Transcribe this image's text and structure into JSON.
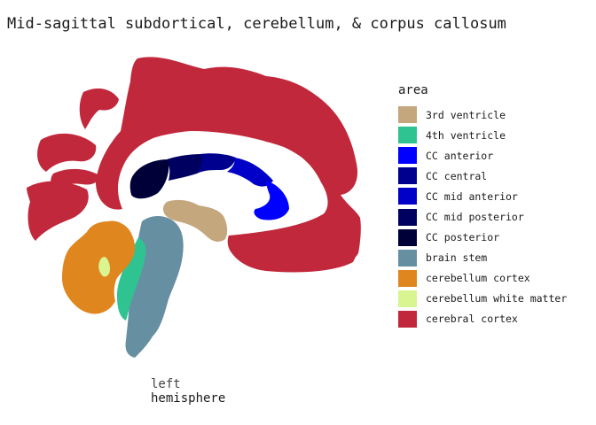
{
  "title": "Mid-sagittal subdortical, cerebellum, & corpus callosum",
  "legend": {
    "title": "area",
    "items": [
      {
        "key": "3rd-ventricle",
        "label": "3rd ventricle",
        "color": "#C4A77D"
      },
      {
        "key": "4th-ventricle",
        "label": "4th ventricle",
        "color": "#2EC391"
      },
      {
        "key": "cc-anterior",
        "label": "CC anterior",
        "color": "#0000FF"
      },
      {
        "key": "cc-central",
        "label": "CC central",
        "color": "#00008F"
      },
      {
        "key": "cc-mid-anterior",
        "label": "CC mid anterior",
        "color": "#0000C8"
      },
      {
        "key": "cc-mid-posterior",
        "label": "CC mid posterior",
        "color": "#000060"
      },
      {
        "key": "cc-posterior",
        "label": "CC posterior",
        "color": "#000038"
      },
      {
        "key": "brain-stem",
        "label": "brain stem",
        "color": "#678FA2"
      },
      {
        "key": "cerebellum-cortex",
        "label": "cerebellum cortex",
        "color": "#E0861E"
      },
      {
        "key": "cerebellum-white-matter",
        "label": "cerebellum white matter",
        "color": "#D9F591"
      },
      {
        "key": "cerebral-cortex",
        "label": "cerebral cortex",
        "color": "#C1283B"
      }
    ]
  },
  "hemisphere": {
    "line1": "left",
    "line2": "hemisphere"
  }
}
